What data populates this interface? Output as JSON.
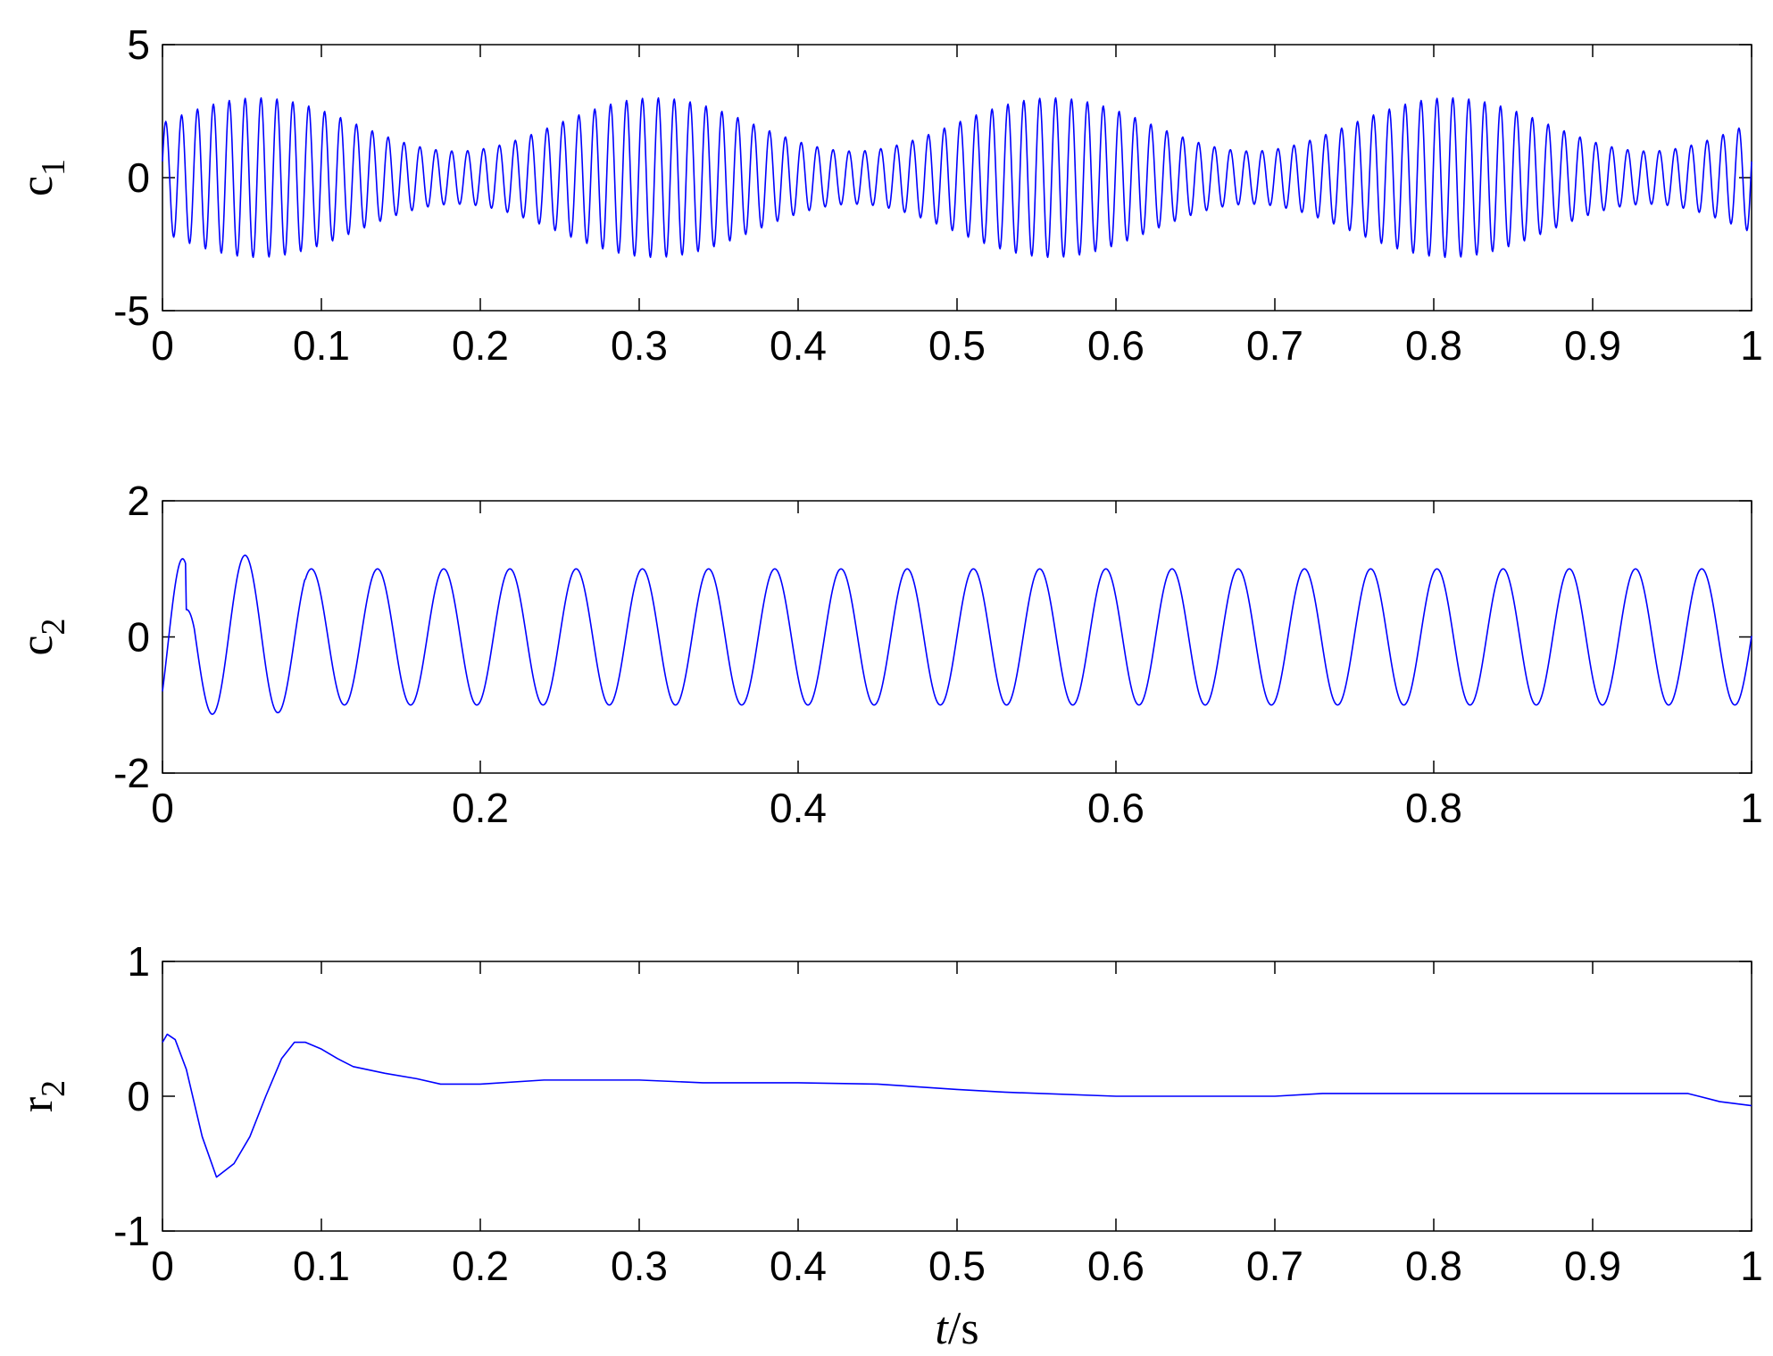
{
  "chart_data": [
    {
      "type": "line",
      "ylabel": "c",
      "ylabel_sub": "1",
      "xlabel": "",
      "xlim": [
        0,
        1
      ],
      "ylim": [
        -5,
        5
      ],
      "xticks": [
        0,
        0.1,
        0.2,
        0.3,
        0.4,
        0.5,
        0.6,
        0.7,
        0.8,
        0.9,
        1
      ],
      "xtick_labels": [
        "0",
        "0.1",
        "0.2",
        "0.3",
        "0.4",
        "0.5",
        "0.6",
        "0.7",
        "0.8",
        "0.9",
        "1"
      ],
      "yticks": [
        -5,
        0,
        5
      ],
      "ytick_labels": [
        "-5",
        "0",
        "5"
      ],
      "grid": false,
      "color": "#0000ff",
      "series": [
        {
          "signal": "amplitude-modulated oscillation",
          "carrier_hz": 100,
          "envelope_center": 2.0,
          "envelope_depth": 1.0,
          "envelope_hz": 4,
          "envelope_peak_times": [
            0.06,
            0.31,
            0.56,
            0.81
          ],
          "peak_amplitude": 3.0,
          "min_amplitude": 1.0
        }
      ]
    },
    {
      "type": "line",
      "ylabel": "c",
      "ylabel_sub": "2",
      "xlabel": "",
      "xlim": [
        0,
        1
      ],
      "ylim": [
        -2,
        2
      ],
      "xticks": [
        0,
        0.2,
        0.4,
        0.6,
        0.8,
        1
      ],
      "xtick_labels": [
        "0",
        "0.2",
        "0.4",
        "0.6",
        "0.8",
        "1"
      ],
      "yticks": [
        -2,
        0,
        2
      ],
      "ytick_labels": [
        "-2",
        "0",
        "2"
      ],
      "grid": false,
      "color": "#0000ff",
      "series": [
        {
          "signal": "sinusoid",
          "frequency_hz": 24,
          "amplitude": 1.0,
          "start_value": -0.8,
          "start_transient_peaks": [
            {
              "x": 0.01,
              "y": 0.8
            },
            {
              "x": 0.05,
              "y": 1.2
            },
            {
              "x": 0.072,
              "y": -1.1
            }
          ]
        }
      ]
    },
    {
      "type": "line",
      "ylabel": "r",
      "ylabel_sub": "2",
      "xlabel": "t/s",
      "xlim": [
        0,
        1
      ],
      "ylim": [
        -1,
        1
      ],
      "xticks": [
        0,
        0.1,
        0.2,
        0.3,
        0.4,
        0.5,
        0.6,
        0.7,
        0.8,
        0.9,
        1
      ],
      "xtick_labels": [
        "0",
        "0.1",
        "0.2",
        "0.3",
        "0.4",
        "0.5",
        "0.6",
        "0.7",
        "0.8",
        "0.9",
        "1"
      ],
      "yticks": [
        -1,
        0,
        1
      ],
      "ytick_labels": [
        "-1",
        "0",
        "1"
      ],
      "grid": false,
      "color": "#0000ff",
      "series": [
        {
          "x": [
            0,
            0.003,
            0.008,
            0.015,
            0.025,
            0.034,
            0.045,
            0.055,
            0.065,
            0.075,
            0.083,
            0.09,
            0.1,
            0.11,
            0.12,
            0.14,
            0.16,
            0.175,
            0.2,
            0.24,
            0.3,
            0.34,
            0.4,
            0.45,
            0.5,
            0.53,
            0.6,
            0.65,
            0.7,
            0.73,
            0.8,
            0.9,
            0.96,
            0.98,
            1.0
          ],
          "y": [
            0.4,
            0.46,
            0.42,
            0.2,
            -0.3,
            -0.6,
            -0.5,
            -0.3,
            0.0,
            0.28,
            0.4,
            0.4,
            0.35,
            0.28,
            0.22,
            0.17,
            0.13,
            0.09,
            0.09,
            0.12,
            0.12,
            0.1,
            0.1,
            0.09,
            0.05,
            0.03,
            0.0,
            0.0,
            0.0,
            0.02,
            0.02,
            0.02,
            0.02,
            -0.04,
            -0.07
          ]
        }
      ]
    }
  ]
}
